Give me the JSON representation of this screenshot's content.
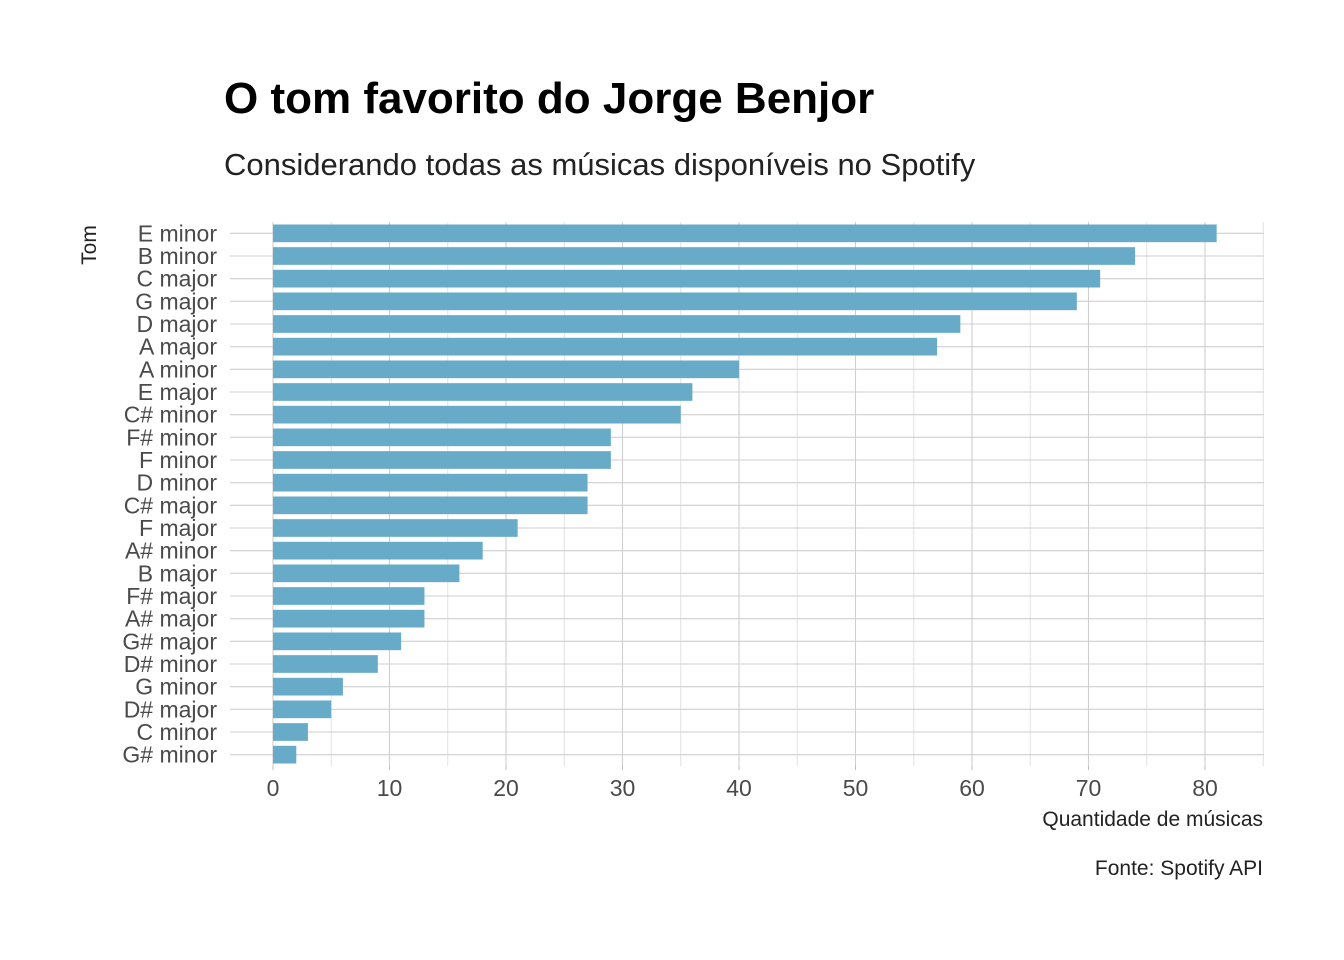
{
  "chart_data": {
    "type": "bar",
    "orientation": "horizontal",
    "title": "O tom favorito do Jorge Benjor",
    "subtitle": "Considerando todas as músicas disponíveis no Spotify",
    "xlabel": "Quantidade de músicas",
    "ylabel": "Tom",
    "caption": "Fonte: Spotify API",
    "categories": [
      "E minor",
      "B minor",
      "C major",
      "G major",
      "D major",
      "A major",
      "A minor",
      "E major",
      "C# minor",
      "F# minor",
      "F minor",
      "D minor",
      "C# major",
      "F major",
      "A# minor",
      "B major",
      "F# major",
      "A# major",
      "G# major",
      "D# minor",
      "G minor",
      "D# major",
      "C minor",
      "G# minor"
    ],
    "values": [
      81,
      74,
      71,
      69,
      59,
      57,
      40,
      36,
      35,
      29,
      29,
      27,
      27,
      21,
      18,
      16,
      13,
      13,
      11,
      9,
      6,
      5,
      3,
      2
    ],
    "xlim": [
      0,
      85
    ],
    "xticks": [
      0,
      10,
      20,
      30,
      40,
      50,
      60,
      70,
      80
    ],
    "grid": true,
    "bar_color": "#67abc8"
  }
}
